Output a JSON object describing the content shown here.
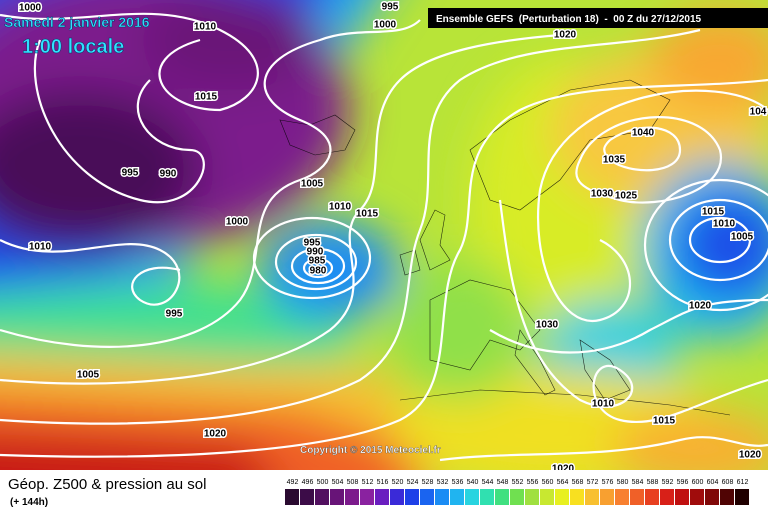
{
  "header": {
    "date": "Samedi 2 janvier 2016",
    "time": "1:00 locale",
    "run": "Ensemble GEFS  (Perturbation 18)  -  00 Z du 27/12/2015"
  },
  "copyright": "Copyright © 2015 Meteociel.fr",
  "footer": {
    "title": "Géop. Z500 & pression au sol",
    "lead": "(+ 144h)"
  },
  "isobar_labels": [
    "1000",
    "1010",
    "995",
    "1000",
    "1020",
    "1015",
    "995",
    "990",
    "1005",
    "1010",
    "1015",
    "1000",
    "995",
    "990",
    "985",
    "980",
    "1010",
    "995",
    "1005",
    "1020",
    "1040",
    "1035",
    "1030",
    "1025",
    "1015",
    "1010",
    "1005",
    "1020",
    "1030",
    "1010",
    "1015",
    "1020",
    "1020",
    "104"
  ],
  "legend": [
    {
      "label": "492",
      "color": "#2a0a30"
    },
    {
      "label": "496",
      "color": "#3c0c48"
    },
    {
      "label": "500",
      "color": "#521060"
    },
    {
      "label": "504",
      "color": "#681478"
    },
    {
      "label": "508",
      "color": "#7c1a8c"
    },
    {
      "label": "512",
      "color": "#8a22a0"
    },
    {
      "label": "516",
      "color": "#6a1ec0"
    },
    {
      "label": "520",
      "color": "#3a2ad8"
    },
    {
      "label": "524",
      "color": "#1e40e8"
    },
    {
      "label": "528",
      "color": "#1a64f0"
    },
    {
      "label": "532",
      "color": "#1a8cf4"
    },
    {
      "label": "536",
      "color": "#20b4f0"
    },
    {
      "label": "540",
      "color": "#28d4e0"
    },
    {
      "label": "544",
      "color": "#30e0b0"
    },
    {
      "label": "548",
      "color": "#40e080"
    },
    {
      "label": "552",
      "color": "#70e050"
    },
    {
      "label": "556",
      "color": "#a0e040"
    },
    {
      "label": "560",
      "color": "#c8e830"
    },
    {
      "label": "564",
      "color": "#e8f020"
    },
    {
      "label": "568",
      "color": "#f8e020"
    },
    {
      "label": "572",
      "color": "#f8c030"
    },
    {
      "label": "576",
      "color": "#f8a030"
    },
    {
      "label": "580",
      "color": "#f88030"
    },
    {
      "label": "584",
      "color": "#f06028"
    },
    {
      "label": "588",
      "color": "#e84020"
    },
    {
      "label": "592",
      "color": "#d82018"
    },
    {
      "label": "596",
      "color": "#c01010"
    },
    {
      "label": "600",
      "color": "#a00c0c"
    },
    {
      "label": "604",
      "color": "#800808"
    },
    {
      "label": "608",
      "color": "#500404"
    },
    {
      "label": "612",
      "color": "#200000"
    }
  ]
}
